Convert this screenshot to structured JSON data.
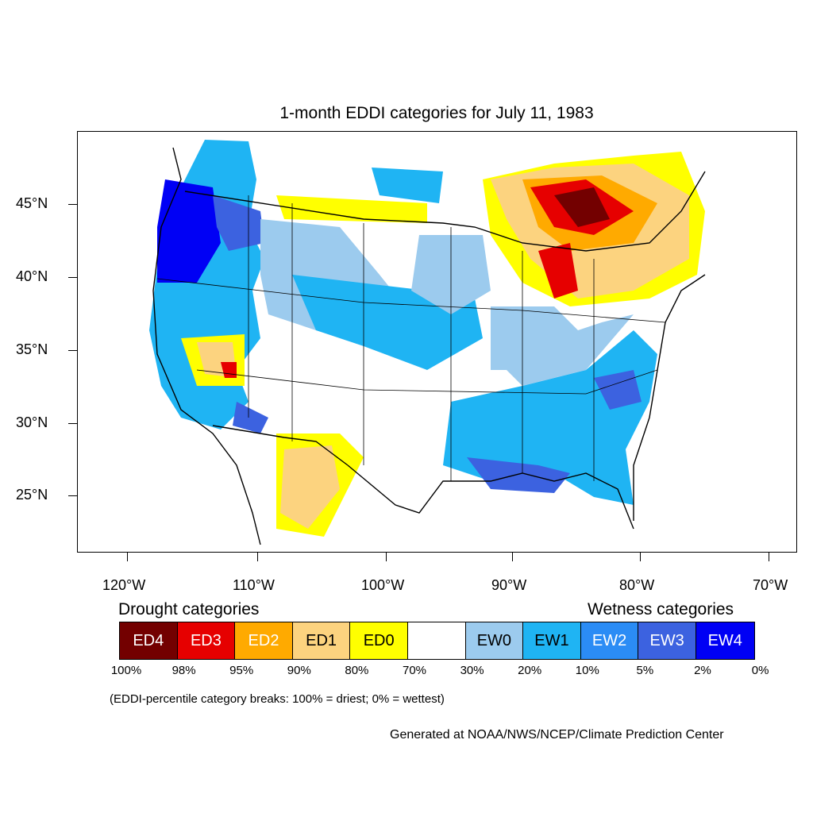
{
  "title": "1-month EDDI categories for July 11, 1983",
  "lat_labels": [
    "45°N",
    "40°N",
    "35°N",
    "30°N",
    "25°N"
  ],
  "lon_labels": [
    "120°W",
    "110°W",
    "100°W",
    "90°W",
    "80°W",
    "70°W"
  ],
  "drought_header": "Drought categories",
  "wetness_header": "Wetness categories",
  "legend": [
    {
      "label": "ED4",
      "color": "#730000",
      "text_color": "#ffffff"
    },
    {
      "label": "ED3",
      "color": "#e60000",
      "text_color": "#ffffff"
    },
    {
      "label": "ED2",
      "color": "#ffaa00",
      "text_color": "#ffffff"
    },
    {
      "label": "ED1",
      "color": "#fcd37f",
      "text_color": "#000000"
    },
    {
      "label": "ED0",
      "color": "#ffff00",
      "text_color": "#000000"
    },
    {
      "label": "",
      "color": "#ffffff",
      "text_color": "#000000"
    },
    {
      "label": "EW0",
      "color": "#9ccbee",
      "text_color": "#000000"
    },
    {
      "label": "EW1",
      "color": "#1fb4f3",
      "text_color": "#000000"
    },
    {
      "label": "EW2",
      "color": "#2b8cf5",
      "text_color": "#ffffff"
    },
    {
      "label": "EW3",
      "color": "#3c62e0",
      "text_color": "#ffffff"
    },
    {
      "label": "EW4",
      "color": "#0000f5",
      "text_color": "#ffffff"
    }
  ],
  "percent_breaks": [
    "100%",
    "98%",
    "95%",
    "90%",
    "80%",
    "70%",
    "30%",
    "20%",
    "10%",
    "5%",
    "2%",
    "0%"
  ],
  "note": "(EDDI-percentile category breaks: 100% = driest; 0% = wettest)",
  "credit": "Generated at NOAA/NWS/NCEP/Climate Prediction Center"
}
